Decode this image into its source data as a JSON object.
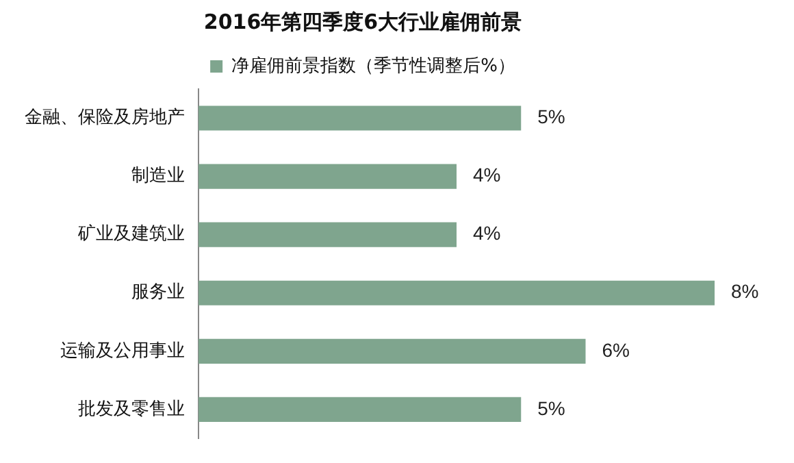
{
  "chart_data": {
    "type": "bar",
    "orientation": "horizontal",
    "title": "2016年第四季度6大行业雇佣前景",
    "categories": [
      "金融、保险及房地产",
      "制造业",
      "矿业及建筑业",
      "服务业",
      "运输及公用事业",
      "批发及零售业"
    ],
    "series": [
      {
        "name": "净雇佣前景指数（季节性调整后%）",
        "color": "#7fa58e",
        "values": [
          5,
          4,
          4,
          8,
          6,
          5
        ],
        "value_labels": [
          "5%",
          "4%",
          "4%",
          "8%",
          "6%",
          "5%"
        ]
      }
    ],
    "legend": "top",
    "tick_labels": "y"
  }
}
